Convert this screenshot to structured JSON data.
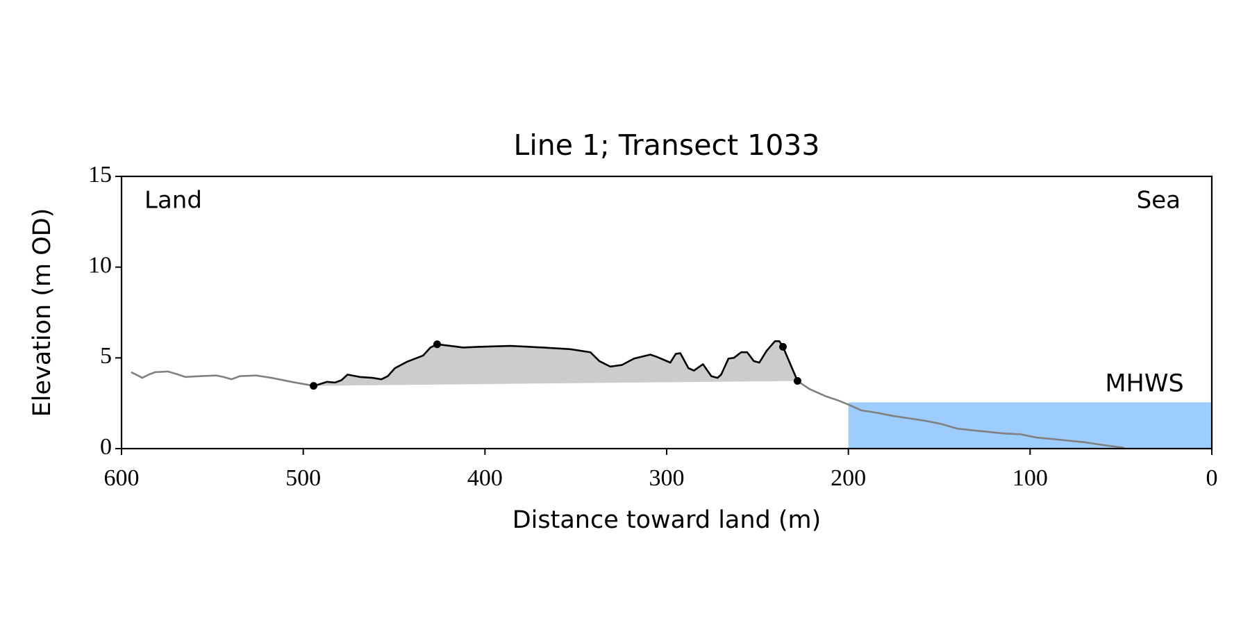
{
  "chart_data": {
    "type": "line",
    "title": "Line 1; Transect 1033",
    "xlabel": "Distance toward land (m)",
    "ylabel": "Elevation (m OD)",
    "annotations": {
      "left": "Land",
      "right": "Sea"
    },
    "xlim": [
      600,
      0
    ],
    "ylim": [
      0,
      15
    ],
    "xticks": [
      600,
      500,
      400,
      300,
      200,
      100,
      0
    ],
    "yticks": [
      0,
      5,
      10,
      15
    ],
    "mhws": {
      "label": "MHWS",
      "level": 2.55,
      "x": [
        200,
        0
      ],
      "color": "#9dcdfc",
      "label_color": "#6a9ac8"
    },
    "series": [
      {
        "color": "#808080",
        "fill": false,
        "x": [
          594.7,
          591,
          588.6,
          585,
          581.6,
          574.6,
          570,
          565,
          557,
          548,
          544,
          539.5,
          535,
          526,
          517.5,
          506.6,
          494.3
        ],
        "values": [
          4.21,
          4.03,
          3.9,
          4.08,
          4.21,
          4.25,
          4.12,
          3.95,
          3.99,
          4.03,
          3.95,
          3.82,
          3.99,
          4.03,
          3.9,
          3.68,
          3.46
        ]
      },
      {
        "color": "#000000",
        "fill": "#cccccc",
        "x": [
          494.3,
          491,
          487,
          482.5,
          479,
          475.6,
          469,
          462,
          457,
          453.5,
          449.6,
          443,
          434,
          430,
          426.3,
          419,
          412,
          403.5,
          386,
          368,
          353,
          342,
          337,
          331,
          324.6,
          318,
          309,
          305,
          298,
          295,
          292.5,
          288,
          285,
          280,
          275.4,
          272,
          270,
          266,
          263,
          259,
          255.7,
          252,
          249,
          245,
          240.4,
          238,
          236,
          228
        ],
        "values": [
          3.46,
          3.55,
          3.68,
          3.64,
          3.77,
          4.08,
          3.95,
          3.9,
          3.82,
          3.99,
          4.43,
          4.78,
          5.13,
          5.57,
          5.75,
          5.66,
          5.57,
          5.61,
          5.66,
          5.57,
          5.48,
          5.31,
          4.82,
          4.52,
          4.61,
          4.96,
          5.18,
          5.04,
          4.74,
          5.22,
          5.26,
          4.43,
          4.3,
          4.65,
          3.99,
          3.9,
          4.08,
          4.96,
          5.0,
          5.31,
          5.31,
          4.82,
          4.74,
          5.39,
          5.92,
          5.92,
          5.61,
          3.73
        ]
      },
      {
        "color": "#808080",
        "fill": false,
        "x": [
          228,
          221.5,
          212.6,
          206,
          199.6,
          193,
          184,
          175.4,
          166.7,
          158,
          149,
          140,
          131.6,
          122.8,
          114,
          105.3,
          96.5,
          87.7,
          79,
          70,
          61.4,
          48.2
        ],
        "values": [
          3.73,
          3.29,
          2.89,
          2.67,
          2.41,
          2.11,
          1.97,
          1.8,
          1.67,
          1.54,
          1.36,
          1.1,
          1.01,
          0.92,
          0.83,
          0.79,
          0.61,
          0.53,
          0.44,
          0.35,
          0.22,
          0.04
        ]
      }
    ],
    "markers": {
      "color": "#000000",
      "x": [
        494.3,
        426.3,
        236,
        228
      ],
      "values": [
        3.46,
        5.75,
        5.61,
        3.73
      ]
    }
  }
}
